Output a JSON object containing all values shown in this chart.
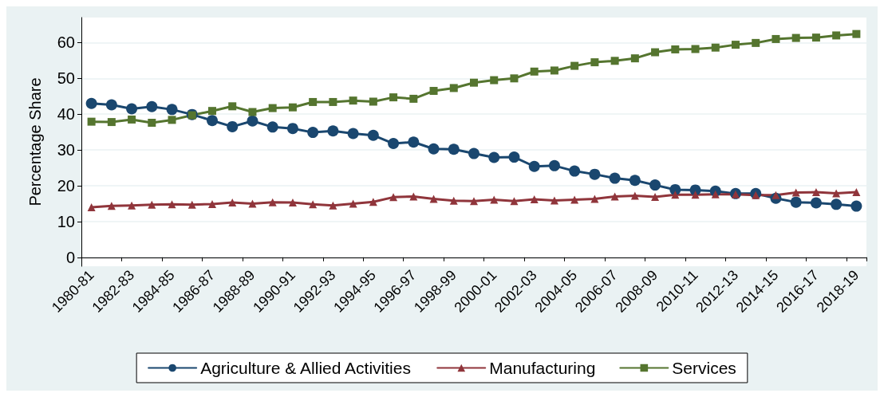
{
  "chart_data": {
    "type": "line",
    "ylabel": "Percentage Share",
    "categories": [
      "1980-81",
      null,
      "1982-83",
      null,
      "1984-85",
      null,
      "1986-87",
      null,
      "1988-89",
      null,
      "1990-91",
      null,
      "1992-93",
      null,
      "1994-95",
      null,
      "1996-97",
      null,
      "1998-99",
      null,
      "2000-01",
      null,
      "2002-03",
      null,
      "2004-05",
      null,
      "2006-07",
      null,
      "2008-09",
      null,
      "2010-11",
      null,
      "2012-13",
      null,
      "2014-15",
      null,
      "2016-17",
      null,
      "2018-19"
    ],
    "series": [
      {
        "name": "Agriculture & Allied Activities",
        "color": "#1a476f",
        "marker": "circle",
        "values": [
          43,
          42.6,
          41.5,
          42.1,
          41.3,
          39.9,
          38.2,
          36.5,
          38.1,
          36.4,
          36.0,
          34.9,
          35.3,
          34.6,
          34.1,
          31.8,
          32.2,
          30.3,
          30.2,
          29.0,
          27.9,
          28.0,
          25.4,
          25.6,
          24.1,
          23.2,
          22.1,
          21.5,
          20.2,
          18.9,
          18.8,
          18.5,
          17.8,
          17.8,
          16.5,
          15.4,
          15.2,
          14.8,
          14.3
        ]
      },
      {
        "name": "Manufacturing",
        "color": "#90353b",
        "marker": "triangle",
        "values": [
          14.0,
          14.4,
          14.5,
          14.7,
          14.8,
          14.7,
          14.9,
          15.3,
          15.0,
          15.4,
          15.3,
          14.8,
          14.5,
          15.0,
          15.5,
          16.8,
          17.0,
          16.3,
          15.8,
          15.7,
          16.1,
          15.7,
          16.2,
          15.9,
          16.1,
          16.3,
          17.0,
          17.2,
          16.9,
          17.5,
          17.5,
          17.6,
          17.6,
          17.4,
          17.4,
          18.1,
          18.2,
          17.9,
          18.2
        ]
      },
      {
        "name": "Services",
        "color": "#55752f",
        "marker": "square",
        "values": [
          37.9,
          37.8,
          38.5,
          37.6,
          38.4,
          39.7,
          40.9,
          42.2,
          40.6,
          41.7,
          41.9,
          43.4,
          43.4,
          43.8,
          43.5,
          44.7,
          44.3,
          46.5,
          47.3,
          48.8,
          49.5,
          50.0,
          51.9,
          52.2,
          53.5,
          54.5,
          54.9,
          55.6,
          57.3,
          58.1,
          58.2,
          58.6,
          59.4,
          59.9,
          61.0,
          61.3,
          61.4,
          62.0,
          62.4
        ]
      }
    ],
    "ylim": [
      -2.5,
      67
    ],
    "yticks": [
      0,
      10,
      20,
      30,
      40,
      50,
      60
    ],
    "grid": "y",
    "legend": "bottom",
    "line_style": "solid"
  }
}
